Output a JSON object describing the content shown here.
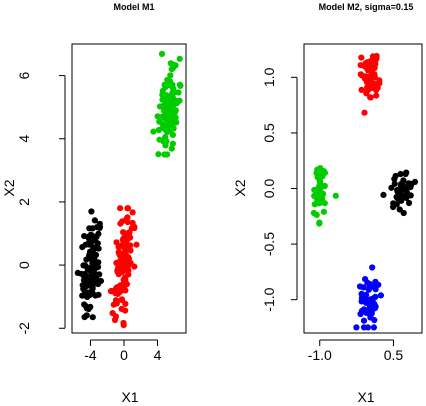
{
  "chart_data": [
    {
      "type": "scatter",
      "title": "Model M1",
      "xlabel": "X1",
      "ylabel": "X2",
      "xlim": [
        -6.2,
        7.4
      ],
      "ylim": [
        -2.15,
        7.0
      ],
      "x_ticks": [
        -4,
        0,
        4
      ],
      "y_ticks": [
        -2,
        0,
        2,
        4,
        6
      ],
      "grid": false,
      "legend": "none",
      "x_rotated": [
        {
          "name": "-4",
          "value": -4
        },
        {
          "name": "0",
          "value": 0
        },
        {
          "name": "4",
          "value": 4
        }
      ],
      "series": [
        {
          "color": "#000000",
          "cx": -4.0,
          "cy": 0.0,
          "sx": 0.55,
          "sy": 0.8,
          "slope": 0.25,
          "n": 100,
          "y_range": [
            -1.8,
            2.2
          ]
        },
        {
          "color": "#ff0000",
          "cx": 0.0,
          "cy": 0.0,
          "sx": 0.55,
          "sy": 0.8,
          "slope": 0.35,
          "n": 130,
          "y_range": [
            -1.9,
            1.8
          ]
        },
        {
          "color": "#00cc00",
          "cx": 5.4,
          "cy": 5.0,
          "sx": 0.5,
          "sy": 0.75,
          "slope": 0.25,
          "n": 100,
          "y_range": [
            3.5,
            6.7
          ]
        }
      ]
    },
    {
      "type": "scatter",
      "title": "Model M2, sigma=0.15",
      "xlabel": "X1",
      "ylabel": "X2",
      "xlim": [
        -1.32,
        1.08
      ],
      "ylim": [
        -1.3,
        1.3
      ],
      "x_ticks": [
        -1.0,
        0.5
      ],
      "y_ticks": [
        -1.0,
        -0.5,
        0.0,
        0.5,
        1.0
      ],
      "grid": false,
      "legend": "none",
      "series": [
        {
          "color": "#00cc00",
          "cx": -1.0,
          "cy": 0.0,
          "sx": 0.1,
          "sy": 0.15,
          "slope": 0.0,
          "n": 40,
          "y_range": [
            -0.38,
            0.3
          ]
        },
        {
          "color": "#ff0000",
          "cx": 0.0,
          "cy": 1.0,
          "sx": 0.1,
          "sy": 0.12,
          "slope": 0.0,
          "n": 60,
          "y_range": [
            0.68,
            1.28
          ]
        },
        {
          "color": "#0000ff",
          "cx": 0.0,
          "cy": -1.0,
          "sx": 0.1,
          "sy": 0.12,
          "slope": 0.0,
          "n": 55,
          "y_range": [
            -1.25,
            -0.68
          ]
        },
        {
          "color": "#000000",
          "cx": 0.7,
          "cy": 0.0,
          "sx": 0.1,
          "sy": 0.1,
          "slope": 0.0,
          "n": 45,
          "y_range": [
            -0.22,
            0.3
          ]
        }
      ]
    }
  ]
}
